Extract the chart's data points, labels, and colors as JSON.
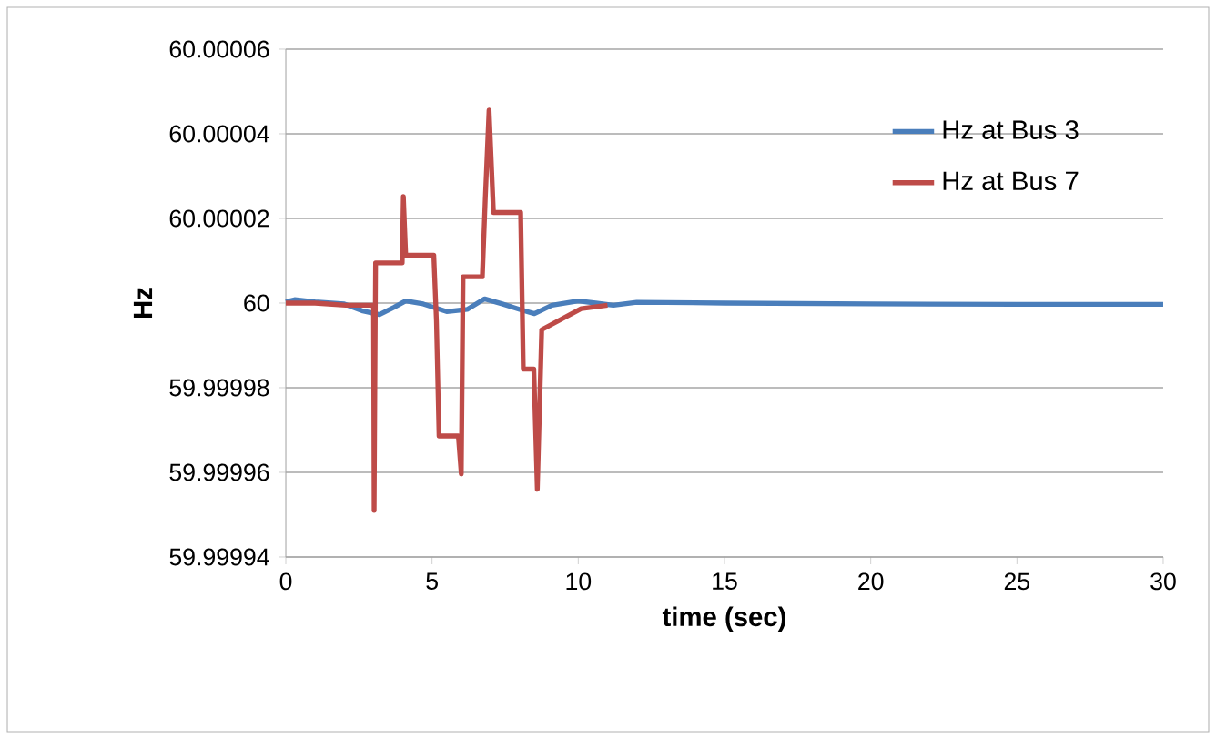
{
  "chart_data": {
    "type": "line",
    "xlabel": "time (sec)",
    "ylabel": "Hz",
    "xlim": [
      0,
      30
    ],
    "xticks": [
      0,
      5,
      10,
      15,
      20,
      25,
      30
    ],
    "ylim": [
      59.99994,
      60.00006
    ],
    "yticks": [
      59.99994,
      59.99996,
      59.99998,
      60,
      60.00002,
      60.00004,
      60.00006
    ],
    "grid": "y",
    "legend": "top right",
    "marker": "none",
    "series": [
      {
        "name": "Hz at Bus 3",
        "color": "#4a7ebb",
        "x": [
          0,
          0.3,
          1,
          2,
          2.6,
          3.2,
          3.7,
          4.1,
          4.7,
          5.5,
          6.2,
          6.8,
          7.4,
          8,
          8.5,
          9.1,
          10,
          10.6,
          11.2,
          12,
          15,
          20,
          25,
          30
        ],
        "values": [
          60.0000003,
          60.0000008,
          60.0000003,
          59.9999998,
          59.9999982,
          59.9999973,
          59.999999,
          60.0000005,
          59.9999998,
          59.999998,
          59.9999985,
          60.000001,
          59.9999998,
          59.9999985,
          59.9999975,
          59.9999995,
          60.0000005,
          60.0,
          59.9999995,
          60.0000002,
          60.0,
          59.9999998,
          59.9999997,
          59.9999997
        ]
      },
      {
        "name": "Hz at Bus 7",
        "color": "#be4b48",
        "x": [
          0,
          1,
          2.05,
          3.0,
          3.02,
          3.07,
          3.98,
          4.02,
          4.1,
          5.06,
          5.15,
          5.24,
          5.9,
          6.0,
          6.06,
          6.72,
          6.82,
          6.95,
          7.1,
          8.03,
          8.12,
          8.48,
          8.6,
          8.75,
          10.1,
          11
        ],
        "values": [
          60.0,
          60.0,
          59.9999995,
          59.9999995,
          59.999951,
          60.0000095,
          60.0000095,
          60.0000252,
          60.0000113,
          60.0000113,
          59.9999958,
          59.9999686,
          59.9999686,
          59.9999596,
          60.0000062,
          60.0000062,
          60.0000245,
          60.0000456,
          60.0000214,
          60.0000214,
          59.9999844,
          59.9999844,
          59.999956,
          59.9999937,
          59.9999987,
          59.9999995
        ]
      }
    ]
  }
}
